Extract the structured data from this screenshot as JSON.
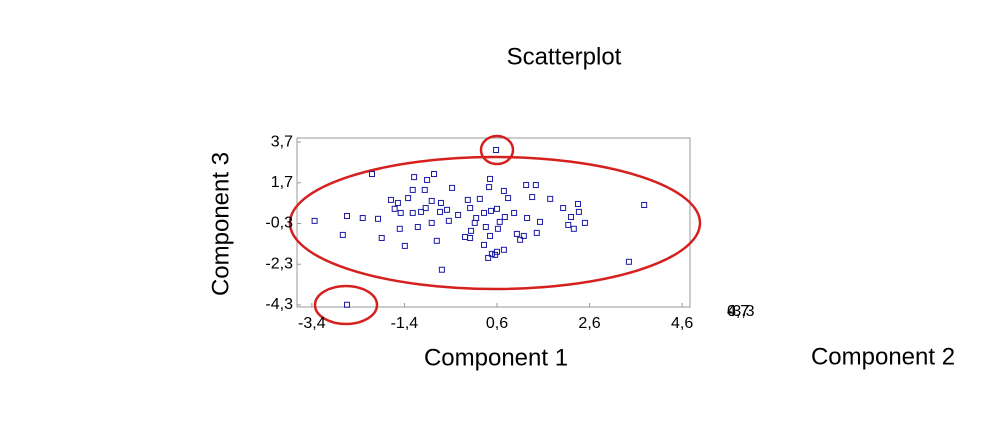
{
  "chart_data": {
    "type": "scatter",
    "title": "Scatterplot",
    "xlabel": "Component 1",
    "ylabel": "Component 3",
    "zlabel": "Component 2",
    "color": "#1a1aa6",
    "xlim": [
      -3.72,
      4.77
    ],
    "ylim": [
      -4.4,
      3.9
    ],
    "xticks": [
      {
        "value": -3.4,
        "label": "-3,4"
      },
      {
        "value": -1.4,
        "label": "-1,4"
      },
      {
        "value": 0.6,
        "label": "0,6"
      },
      {
        "value": 2.6,
        "label": "2,6"
      },
      {
        "value": 4.6,
        "label": "4,6"
      }
    ],
    "yticks": [
      {
        "value": 3.7,
        "label": "3,7"
      },
      {
        "value": 1.7,
        "label": "1,7"
      },
      {
        "value": -0.3,
        "label": "-0,3"
      },
      {
        "value": -2.3,
        "label": "-2,3"
      },
      {
        "value": -4.3,
        "label": "-4,3"
      }
    ],
    "zticks": [
      {
        "value": -3.3,
        "label": "-3,3"
      },
      {
        "value": 0.7,
        "label": "0,7"
      },
      {
        "value": 4.7,
        "label": "4,7"
      }
    ],
    "x": [
      0.58,
      -2.1,
      -1.19,
      -0.91,
      -0.76,
      0.45,
      -0.37,
      0.43,
      1.23,
      1.44,
      0.75,
      -1.69,
      -1.54,
      -1.22,
      -0.96,
      -1.32,
      -0.81,
      -0.61,
      -0.03,
      0.23,
      0.84,
      1.36,
      1.75,
      2.03,
      2.35,
      2.37,
      3.78,
      -3.34,
      -2.64,
      -2.3,
      -1.97,
      -1.61,
      -1.48,
      -1.22,
      -1.04,
      -0.94,
      -0.63,
      -0.48,
      -0.24,
      0.02,
      0.15,
      0.32,
      0.47,
      0.6,
      0.77,
      0.97,
      1.25,
      2.2,
      2.14,
      2.26,
      2.5,
      -2.73,
      -1.89,
      -1.5,
      -1.39,
      -1.11,
      -0.81,
      -0.7,
      -0.44,
      -0.09,
      0.04,
      0.12,
      0.36,
      0.45,
      0.62,
      0.66,
      1.03,
      1.1,
      1.46,
      1.53,
      0.02,
      0.32,
      0.49,
      0.56,
      0.41,
      0.6,
      0.75,
      1.18,
      3.45,
      -0.59,
      -2.64
    ],
    "values": [
      3.31,
      2.13,
      1.98,
      1.84,
      2.13,
      1.89,
      1.45,
      1.49,
      1.59,
      1.59,
      1.3,
      0.86,
      0.71,
      1.35,
      1.35,
      0.95,
      0.81,
      0.71,
      0.86,
      0.91,
      0.95,
      1.0,
      0.91,
      0.46,
      0.66,
      0.27,
      0.61,
      -0.17,
      0.07,
      -0.03,
      -0.07,
      0.42,
      0.22,
      0.22,
      0.27,
      0.46,
      0.27,
      0.37,
      0.12,
      0.46,
      -0.03,
      0.22,
      0.32,
      0.42,
      0.02,
      0.22,
      -0.03,
      0.02,
      -0.37,
      -0.56,
      -0.27,
      -0.86,
      -1.01,
      -0.56,
      -1.4,
      -0.47,
      -0.27,
      -1.15,
      -0.17,
      -0.96,
      -0.66,
      -0.27,
      -0.47,
      -0.91,
      -0.56,
      -0.22,
      -0.81,
      -1.1,
      -0.76,
      -0.22,
      -1.01,
      -1.35,
      -1.79,
      -1.84,
      -1.99,
      -1.69,
      -1.59,
      -0.91,
      -2.18,
      -2.57,
      -4.29
    ]
  }
}
